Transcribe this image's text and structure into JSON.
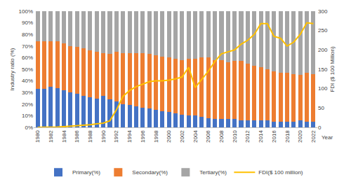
{
  "chart_data": {
    "type": "bar",
    "stacked": true,
    "grid": false,
    "legend": "bottom",
    "x_label": "Year",
    "y_label": "Industry ratio (%)",
    "y2_label": "FDI ($ 100 Million)",
    "categories": [
      "1980",
      null,
      "1982",
      null,
      "1984",
      null,
      "1986",
      null,
      "1988",
      null,
      "1990",
      null,
      "1992",
      null,
      "1994",
      null,
      "1996",
      null,
      "1998",
      null,
      "2000",
      null,
      "2002",
      null,
      "2004",
      null,
      "2006",
      null,
      "2008",
      null,
      "2010",
      null,
      "2012",
      null,
      "2014",
      null,
      "2016",
      null,
      "2018",
      null,
      "2020",
      null,
      "2022"
    ],
    "ylim": [
      0,
      100
    ],
    "yticks": [
      {
        "value": 0,
        "label": "0%"
      },
      {
        "value": 10,
        "label": "10%"
      },
      {
        "value": 20,
        "label": "20%"
      },
      {
        "value": 30,
        "label": "30%"
      },
      {
        "value": 40,
        "label": "40%"
      },
      {
        "value": 50,
        "label": "50%"
      },
      {
        "value": 60,
        "label": "60%"
      },
      {
        "value": 70,
        "label": "70%"
      },
      {
        "value": 80,
        "label": "80%"
      },
      {
        "value": 90,
        "label": "90%"
      },
      {
        "value": 100,
        "label": "100%"
      }
    ],
    "y2lim": [
      0,
      300
    ],
    "y2ticks": [
      0,
      50,
      100,
      150,
      200,
      250,
      300
    ],
    "series": [
      {
        "name": "Primary(%)",
        "type": "bar",
        "color": "#4472C4",
        "values": [
          33,
          33,
          35,
          34,
          32,
          30,
          29,
          27,
          26,
          25,
          27,
          24,
          22,
          20,
          19,
          18,
          17,
          16,
          15,
          14,
          13,
          12,
          11,
          10,
          10,
          9,
          8,
          7,
          7,
          7,
          7,
          6,
          6,
          6,
          6,
          6,
          5,
          5,
          5,
          5,
          6,
          5,
          5
        ]
      },
      {
        "name": "Secondary(%)",
        "type": "bar",
        "color": "#ED7D31",
        "values": [
          41,
          41,
          39,
          40,
          40,
          40,
          40,
          41,
          40,
          40,
          37,
          39,
          43,
          44,
          45,
          46,
          47,
          47,
          47,
          47,
          47,
          47,
          47,
          49,
          49,
          51,
          52,
          51,
          51,
          49,
          50,
          51,
          49,
          47,
          46,
          44,
          43,
          42,
          42,
          41,
          39,
          42,
          41
        ]
      },
      {
        "name": "Tertiary(%)",
        "type": "bar",
        "color": "#A5A5A5",
        "values": [
          26,
          26,
          26,
          26,
          28,
          30,
          31,
          32,
          34,
          35,
          36,
          37,
          35,
          36,
          36,
          36,
          36,
          37,
          38,
          39,
          40,
          41,
          42,
          41,
          41,
          40,
          40,
          42,
          42,
          44,
          43,
          43,
          45,
          47,
          48,
          50,
          52,
          53,
          53,
          54,
          55,
          53,
          54
        ]
      },
      {
        "name": "FDI($ 100 million)",
        "type": "line",
        "axis": "y2",
        "color": "#FFC000",
        "values": [
          0,
          0,
          0,
          1,
          2,
          3,
          4,
          5,
          7,
          9,
          11,
          17,
          45,
          80,
          95,
          105,
          112,
          118,
          120,
          120,
          122,
          125,
          130,
          155,
          103,
          125,
          145,
          170,
          190,
          195,
          200,
          215,
          225,
          240,
          268,
          268,
          235,
          230,
          210,
          220,
          240,
          270,
          268
        ]
      }
    ]
  }
}
